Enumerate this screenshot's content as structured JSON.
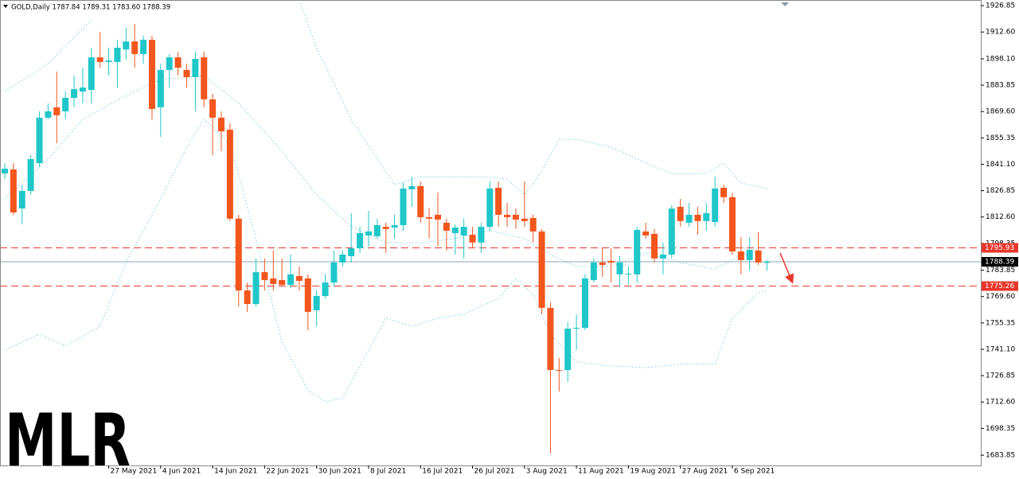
{
  "chart_data": {
    "type": "candlestick",
    "title": "GOLD,Daily  1787.84 1789.31 1783.60 1788.39",
    "watermark": "MLR",
    "up_color": "#1fc7c9",
    "down_color": "#f2561d",
    "categories": [
      null,
      null,
      null,
      null,
      null,
      null,
      null,
      null,
      null,
      null,
      null,
      null,
      "27 May 2021",
      null,
      null,
      null,
      null,
      null,
      "4 Jun 2021",
      null,
      null,
      null,
      null,
      null,
      "14 Jun 2021",
      null,
      null,
      null,
      null,
      null,
      "22 Jun 2021",
      null,
      null,
      null,
      null,
      null,
      "30 Jun 2021",
      null,
      null,
      null,
      null,
      null,
      "8 Jul 2021",
      null,
      null,
      null,
      null,
      null,
      "16 Jul 2021",
      null,
      null,
      null,
      null,
      null,
      "26 Jul 2021",
      null,
      null,
      null,
      null,
      null,
      "3 Aug 2021",
      null,
      null,
      null,
      null,
      null,
      "11 Aug 2021",
      null,
      null,
      null,
      null,
      null,
      "19 Aug 2021",
      null,
      null,
      null,
      null,
      null,
      "27 Aug 2021",
      null,
      null,
      null,
      null,
      null,
      "6 Sep 2021",
      null,
      null,
      null,
      null
    ],
    "open": [
      1836.2,
      1838.3,
      1817.2,
      1826.7,
      1841.7,
      1866.3,
      1871.9,
      1869.7,
      1877.0,
      1880.4,
      1881.3,
      1898.9,
      1896.4,
      1896.4,
      1903.2,
      1907.5,
      1900.7,
      1908.4,
      1871.9,
      1892.1,
      1898.9,
      1892.1,
      1888.2,
      1898.9,
      1876.2,
      1866.3,
      1859.8,
      1811.7,
      1772.9,
      1765.6,
      1782.8,
      1779.4,
      1778.5,
      1775.9,
      1780.7,
      1779.4,
      1762.2,
      1769.9,
      1777.2,
      1788.0,
      1791.4,
      1795.7,
      1802.6,
      1802.2,
      1807.3,
      1806.9,
      1808.2,
      1827.6,
      1829.3,
      1812.5,
      1813.8,
      1809.5,
      1803.9,
      1802.6,
      1803.0,
      1798.8,
      1807.3,
      1828.4,
      1813.8,
      1813.8,
      1811.7,
      1812.1,
      1804.8,
      1763.5,
      1729.9,
      1729.9,
      1752.3,
      1752.7,
      1778.5,
      1788.0,
      1788.9,
      1781.6,
      1781.6,
      1781.6,
      1804.8,
      1803.5,
      1790.2,
      1792.3,
      1818.1,
      1809.5,
      1813.8,
      1810.4,
      1809.9,
      1828.4,
      1823.3,
      1794.0,
      1789.3,
      1794.5,
      1787.84
    ],
    "high": [
      1841.7,
      1841.7,
      1830.1,
      1846.0,
      1869.7,
      1874.0,
      1891.2,
      1880.4,
      1889.1,
      1893.3,
      1904.1,
      1912.7,
      1904.1,
      1908.4,
      1914.9,
      1917.0,
      1910.6,
      1910.6,
      1895.5,
      1900.7,
      1901.9,
      1895.5,
      1901.9,
      1901.9,
      1879.2,
      1869.7,
      1863.3,
      1813.8,
      1777.2,
      1790.2,
      1790.2,
      1794.5,
      1790.2,
      1792.3,
      1785.8,
      1781.6,
      1772.9,
      1781.6,
      1794.5,
      1794.5,
      1814.7,
      1807.3,
      1815.9,
      1811.6,
      1809.5,
      1813.8,
      1831.0,
      1834.4,
      1831.9,
      1817.2,
      1825.8,
      1811.7,
      1808.6,
      1811.7,
      1807.3,
      1809.5,
      1831.9,
      1831.9,
      1820.2,
      1817.2,
      1831.9,
      1813.8,
      1806.1,
      1766.5,
      1736.4,
      1755.7,
      1760.0,
      1781.6,
      1790.2,
      1795.7,
      1795.7,
      1791.4,
      1785.8,
      1807.3,
      1809.5,
      1806.1,
      1798.8,
      1819.0,
      1822.4,
      1820.2,
      1818.1,
      1820.2,
      1834.4,
      1830.1,
      1825.8,
      1801.8,
      1801.8,
      1804.3,
      1789.31
    ],
    "low": [
      1833.1,
      1813.8,
      1808.6,
      1824.6,
      1839.6,
      1865.4,
      1852.5,
      1865.4,
      1871.9,
      1874.0,
      1874.0,
      1893.3,
      1889.1,
      1882.6,
      1897.7,
      1893.3,
      1895.5,
      1865.4,
      1855.9,
      1882.6,
      1889.1,
      1882.6,
      1869.7,
      1871.9,
      1846.0,
      1848.2,
      1810.4,
      1764.3,
      1761.3,
      1764.3,
      1772.9,
      1772.9,
      1775.1,
      1774.2,
      1772.9,
      1751.5,
      1753.6,
      1768.6,
      1775.1,
      1785.8,
      1788.0,
      1793.2,
      1796.6,
      1800.9,
      1793.2,
      1800.9,
      1805.2,
      1818.1,
      1809.5,
      1800.9,
      1796.6,
      1794.5,
      1792.3,
      1790.2,
      1795.7,
      1793.2,
      1805.2,
      1807.3,
      1807.3,
      1806.1,
      1807.3,
      1798.8,
      1760.0,
      1684.8,
      1718.3,
      1723.5,
      1740.7,
      1751.5,
      1777.2,
      1780.3,
      1777.2,
      1775.1,
      1776.0,
      1777.2,
      1800.9,
      1788.0,
      1781.6,
      1790.2,
      1807.3,
      1807.3,
      1803.0,
      1805.2,
      1807.3,
      1820.2,
      1792.3,
      1781.6,
      1783.7,
      1786.7,
      1783.6
    ],
    "close": [
      1838.7,
      1815.1,
      1826.7,
      1843.9,
      1866.3,
      1869.7,
      1867.6,
      1877.0,
      1881.7,
      1882.6,
      1898.9,
      1896.4,
      1897.2,
      1904.1,
      1907.5,
      1900.7,
      1908.4,
      1871.0,
      1892.1,
      1898.9,
      1893.3,
      1888.2,
      1898.1,
      1876.2,
      1866.3,
      1858.9,
      1811.7,
      1772.9,
      1765.6,
      1782.8,
      1778.5,
      1776.4,
      1775.9,
      1781.6,
      1778.1,
      1761.3,
      1769.9,
      1777.2,
      1788.0,
      1792.3,
      1795.7,
      1803.9,
      1804.8,
      1808.2,
      1806.1,
      1808.2,
      1828.0,
      1829.3,
      1812.5,
      1811.7,
      1811.2,
      1805.2,
      1806.9,
      1807.3,
      1798.8,
      1807.3,
      1828.0,
      1813.8,
      1812.5,
      1811.2,
      1810.4,
      1804.8,
      1763.5,
      1729.9,
      1729.5,
      1752.3,
      1752.7,
      1779.4,
      1788.0,
      1786.7,
      1788.0,
      1788.0,
      1782.0,
      1805.6,
      1802.6,
      1790.2,
      1792.3,
      1817.2,
      1810.4,
      1813.8,
      1810.4,
      1814.7,
      1828.0,
      1823.3,
      1794.0,
      1789.3,
      1794.9,
      1788.0,
      1788.39
    ],
    "bands": {
      "color": "#7cccf0",
      "series": [
        {
          "x": [
            0,
            5,
            10
          ],
          "values": [
            1880.4,
            1895.5,
            1919.1
          ]
        },
        {
          "x": [
            34,
            36,
            40,
            43,
            45,
            48,
            55,
            58,
            60,
            62,
            64,
            66,
            70,
            73,
            77,
            81,
            83,
            85,
            88
          ],
          "values": [
            1929.9,
            1904.1,
            1865.4,
            1843.9,
            1830.1,
            1834.4,
            1834.4,
            1833.1,
            1824.6,
            1837.4,
            1854.6,
            1854.6,
            1850.3,
            1843.9,
            1836.1,
            1836.1,
            1841.7,
            1831.0,
            1828.0
          ]
        },
        {
          "x": [
            0,
            5,
            9,
            14,
            18,
            23,
            27,
            32,
            36,
            40,
            44,
            48,
            52,
            56,
            60,
            63,
            66,
            70,
            74,
            78,
            82,
            85,
            88
          ],
          "values": [
            1822.4,
            1843.9,
            1865.4,
            1878.3,
            1886.9,
            1889.0,
            1874.0,
            1848.2,
            1824.6,
            1807.3,
            1798.7,
            1798.7,
            1800.9,
            1805.2,
            1800.9,
            1792.3,
            1785.8,
            1785.8,
            1793.2,
            1788.0,
            1784.5,
            1792.3,
            1793.2
          ]
        },
        {
          "x": [
            0,
            4,
            7,
            11,
            14,
            18,
            21,
            23,
            26,
            29,
            32,
            35,
            37,
            39,
            41,
            44,
            47,
            50,
            53,
            57,
            59,
            61,
            63,
            66,
            70,
            74,
            78,
            82,
            84,
            87,
            88
          ],
          "values": [
            1740.7,
            1749.3,
            1742.8,
            1753.6,
            1788.0,
            1822.4,
            1850.3,
            1865.4,
            1852.5,
            1800.9,
            1745.0,
            1719.2,
            1712.7,
            1714.9,
            1732.1,
            1757.9,
            1753.6,
            1757.9,
            1760.0,
            1768.6,
            1779.4,
            1770.8,
            1749.3,
            1734.2,
            1732.1,
            1731.2,
            1733.0,
            1733.0,
            1757.9,
            1771.6,
            1772.9
          ]
        }
      ]
    },
    "hlines": [
      {
        "value": 1795.93,
        "color": "#e8372c",
        "style": "dashed"
      },
      {
        "value": 1775.26,
        "color": "#e8372c",
        "style": "dashed"
      },
      {
        "value": 1788.39,
        "color": "#8aa4b8",
        "style": "solid",
        "label_color": "#000000"
      }
    ],
    "ylim": [
      1678.3,
      1929.9
    ],
    "yticks": [
      1926.85,
      {
        "value": 1912.6,
        "label": "1912.60"
      },
      {
        "value": 1898.1,
        "label": "1898.10"
      },
      1883.85,
      {
        "value": 1869.6,
        "label": "1869.60"
      },
      1855.35,
      {
        "value": 1841.1,
        "label": "1841.10"
      },
      1826.85,
      {
        "value": 1812.6,
        "label": "1812.60"
      },
      1798.35,
      1783.85,
      {
        "value": 1769.6,
        "label": "1769.60"
      },
      1755.35,
      {
        "value": 1741.1,
        "label": "1741.10"
      },
      1726.85,
      {
        "value": 1712.6,
        "label": "1712.60"
      },
      1698.35,
      1683.85
    ]
  }
}
